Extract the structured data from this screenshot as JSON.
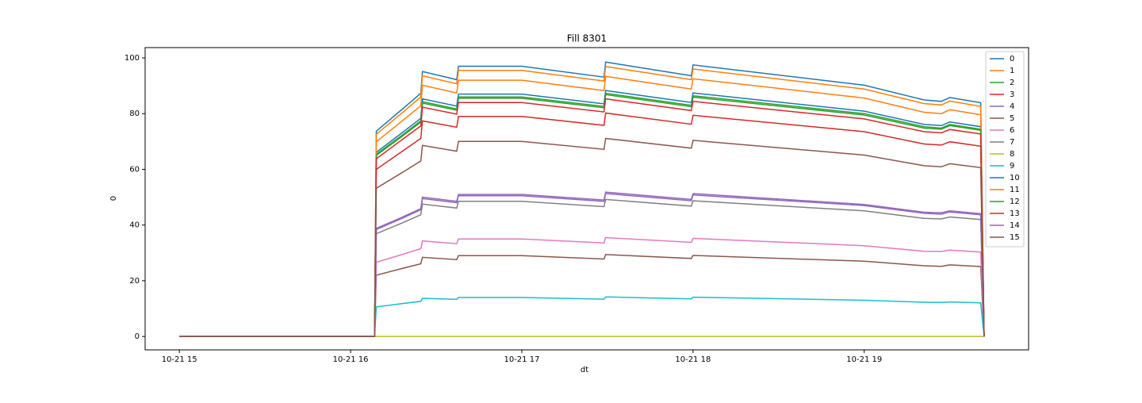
{
  "chart_data": {
    "type": "line",
    "title": "Fill 8301",
    "x_label": "dt",
    "y_label": "0",
    "x": [
      15.0,
      16.14,
      16.15,
      16.3,
      16.41,
      16.42,
      16.62,
      16.63,
      17.0,
      17.48,
      17.49,
      17.99,
      18.0,
      19.0,
      19.35,
      19.45,
      19.5,
      19.68,
      19.7
    ],
    "series": [
      {
        "name": "0",
        "color": "#1f77b4",
        "values": [
          0,
          0,
          73.7,
          81.5,
          87.3,
          95.1,
          92.2,
          97,
          97,
          93.1,
          98.5,
          93.6,
          97.5,
          90.2,
          84.9,
          84.4,
          85.8,
          83.9,
          0
        ]
      },
      {
        "name": "1",
        "color": "#ff7f0e",
        "values": [
          0,
          0,
          72.6,
          80.2,
          86,
          93.6,
          90.7,
          95.5,
          95.5,
          91.7,
          96.9,
          92.2,
          96,
          88.8,
          83.6,
          83.1,
          84.5,
          82.6,
          0
        ]
      },
      {
        "name": "2",
        "color": "#2ca02c",
        "values": [
          0,
          0,
          65.4,
          72.2,
          77.4,
          84.3,
          81.7,
          86,
          86,
          82.6,
          87.3,
          83,
          86.4,
          80,
          75.3,
          74.8,
          76.1,
          74.4,
          0
        ]
      },
      {
        "name": "3",
        "color": "#d62728",
        "values": [
          0,
          0,
          60,
          66.4,
          71.1,
          77.4,
          75.1,
          79,
          79,
          75.8,
          80.2,
          76.2,
          79.4,
          73.5,
          69.1,
          68.7,
          69.9,
          68.3,
          0
        ]
      },
      {
        "name": "4",
        "color": "#9467bd",
        "values": [
          0,
          0,
          38.8,
          42.8,
          45.9,
          50,
          48.5,
          51,
          51,
          49,
          51.8,
          49.2,
          51.3,
          47.4,
          44.6,
          44.4,
          45.1,
          44.1,
          0
        ]
      },
      {
        "name": "5",
        "color": "#8c564b",
        "values": [
          0,
          0,
          22,
          24.4,
          26.1,
          28.4,
          27.6,
          29,
          29,
          27.8,
          29.4,
          28,
          29.1,
          27,
          25.4,
          25.2,
          25.7,
          25.1,
          0
        ]
      },
      {
        "name": "6",
        "color": "#e377c2",
        "values": [
          0,
          0,
          26.6,
          29.4,
          31.5,
          34.3,
          33.3,
          35,
          35,
          33.6,
          35.5,
          33.8,
          35.2,
          32.6,
          30.6,
          30.5,
          31,
          30.3,
          0
        ]
      },
      {
        "name": "7",
        "color": "#7f7f7f",
        "values": [
          0,
          0,
          36.9,
          40.7,
          43.7,
          47.5,
          46.1,
          48.5,
          48.5,
          46.6,
          49.2,
          46.8,
          48.7,
          45.1,
          42.4,
          42.2,
          42.9,
          42,
          0
        ]
      },
      {
        "name": "8",
        "color": "#bcbd22",
        "values": [
          0,
          0,
          0,
          0,
          0,
          0,
          0,
          0,
          0,
          0,
          0,
          0,
          0,
          0,
          0,
          0,
          0,
          0,
          0
        ]
      },
      {
        "name": "9",
        "color": "#17becf",
        "values": [
          0,
          0,
          10.6,
          11.8,
          12.6,
          13.7,
          13.3,
          14,
          14,
          13.4,
          14.2,
          13.5,
          14.1,
          13,
          12.3,
          12.2,
          12.4,
          12.1,
          0
        ]
      },
      {
        "name": "10",
        "color": "#1f77b4",
        "values": [
          0,
          0,
          66.1,
          73.1,
          78.3,
          85.3,
          82.7,
          87,
          87,
          83.5,
          88.3,
          84,
          87.4,
          80.9,
          76.1,
          75.7,
          77,
          75.3,
          0
        ]
      },
      {
        "name": "11",
        "color": "#ff7f0e",
        "values": [
          0,
          0,
          69.9,
          77.3,
          82.8,
          90.2,
          87.4,
          92,
          92,
          88.3,
          93.4,
          88.8,
          92.5,
          85.6,
          80.5,
          80,
          81.4,
          79.6,
          0
        ]
      },
      {
        "name": "12",
        "color": "#2ca02c",
        "values": [
          0,
          0,
          65,
          71.8,
          77,
          83.8,
          81.2,
          85.5,
          85.5,
          82.1,
          86.8,
          82.5,
          85.9,
          79.5,
          74.8,
          74.4,
          75.7,
          74,
          0
        ]
      },
      {
        "name": "13",
        "color": "#d62728",
        "values": [
          0,
          0,
          63.8,
          70.6,
          75.6,
          82.3,
          79.8,
          84,
          84,
          80.6,
          85.3,
          81.1,
          84.4,
          78.1,
          73.5,
          73.1,
          74.3,
          72.7,
          0
        ]
      },
      {
        "name": "14",
        "color": "#9467bd",
        "values": [
          0,
          0,
          38.4,
          42.4,
          45.5,
          49.5,
          48,
          50.5,
          50.5,
          48.5,
          51.3,
          48.7,
          50.8,
          47,
          44.2,
          43.9,
          44.7,
          43.7,
          0
        ]
      },
      {
        "name": "15",
        "color": "#8c564b",
        "values": [
          0,
          0,
          53.2,
          58.8,
          63,
          68.6,
          66.5,
          70,
          70,
          67.2,
          71.1,
          67.6,
          70.4,
          65.1,
          61.3,
          60.9,
          62,
          60.6,
          0
        ]
      }
    ],
    "xlim": [
      14.8,
      19.96
    ],
    "xticks": [
      {
        "value": 15,
        "label": "10-21 15"
      },
      {
        "value": 16,
        "label": "10-21 16"
      },
      {
        "value": 17,
        "label": "10-21 17"
      },
      {
        "value": 18,
        "label": "10-21 18"
      },
      {
        "value": 19,
        "label": "10-21 19"
      }
    ],
    "ylim": [
      -4.8,
      103.7
    ],
    "yticks": [
      0,
      20,
      40,
      60,
      80,
      100
    ],
    "legend": "upper right"
  }
}
